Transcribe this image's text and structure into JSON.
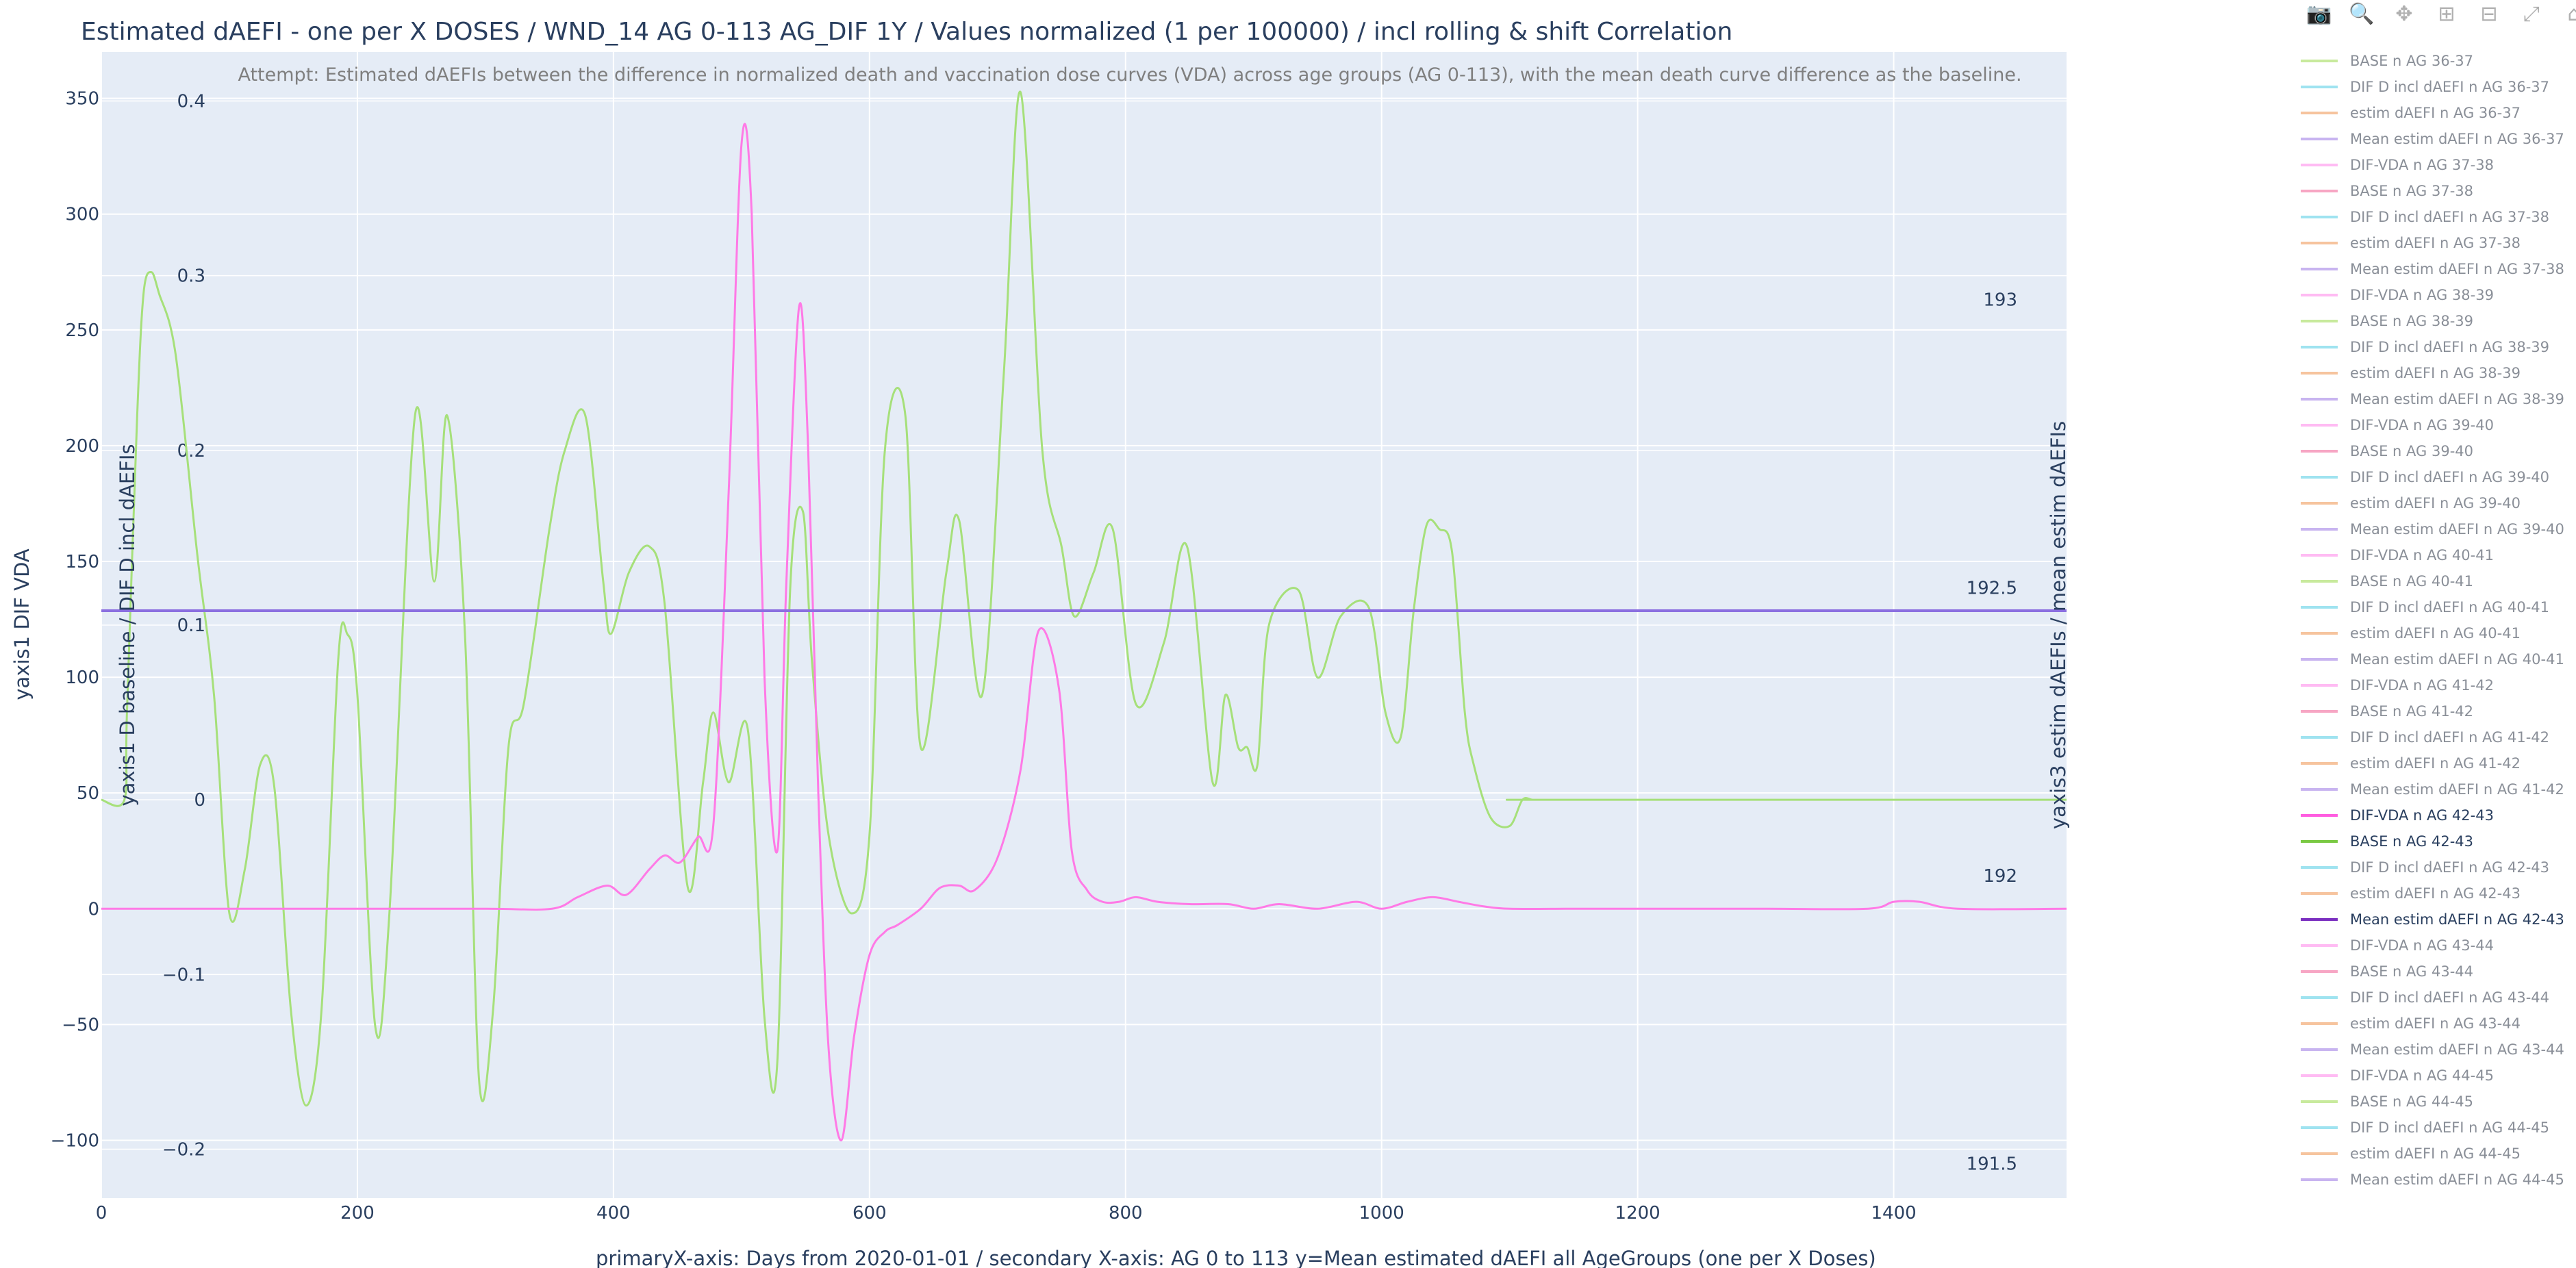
{
  "chart_data": {
    "type": "line",
    "title": "Estimated dAEFI - one per X DOSES / WND_14 AG 0-113 AG_DIF 1Y / Values normalized (1 per 100000) / incl rolling & shift Correlation",
    "annotation": "Attempt: Estimated dAEFIs between the difference in normalized death and vaccination dose curves (VDA) across age groups (AG 0-113), with the mean death curve difference as the baseline.",
    "xlabel": "primaryX-axis: Days from 2020-01-01  / secondary X-axis: AG 0 to 113 y=Mean estimated dAEFI all AgeGroups (one per X Doses)",
    "y1label": "yaxis1 DIF VDA",
    "y2label": "yaxis1 D baseline / DIF D incl dAEFIs",
    "y3label": "yaxis3 estim dAEFIs / mean estim dAEFIs",
    "xlim": [
      0,
      1535
    ],
    "y1lim": [
      -125,
      370
    ],
    "y2lim": [
      -0.228,
      0.428
    ],
    "y3lim": [
      191.44,
      193.43
    ],
    "xticks": [
      0,
      200,
      400,
      600,
      800,
      1000,
      1200,
      1400
    ],
    "y1ticks": [
      -100,
      -50,
      0,
      50,
      100,
      150,
      200,
      250,
      300,
      350
    ],
    "y2ticks": [
      -0.2,
      -0.1,
      0,
      0.1,
      0.2,
      0.3,
      0.4
    ],
    "y3ticks": [
      191.5,
      192,
      192.5,
      193
    ],
    "grid": true,
    "legend_position": "right",
    "series": [
      {
        "name": "BASE n AG 42-43",
        "axis": "y2",
        "color": "#a6e07a",
        "x": [
          0,
          18,
          20,
          28,
          33,
          39,
          45,
          58,
          75,
          88,
          100,
          112,
          124,
          135,
          148,
          160,
          172,
          185,
          192,
          200,
          214,
          225,
          245,
          260,
          270,
          284,
          295,
          306,
          318,
          330,
          350,
          362,
          378,
          392,
          398,
          412,
          428,
          440,
          458,
          470,
          478,
          490,
          505,
          518,
          528,
          538,
          548,
          555,
          568,
          586,
          600,
          612,
          628,
          640,
          660,
          670,
          688,
          705,
          718,
          735,
          750,
          760,
          775,
          790,
          808,
          830,
          848,
          868,
          878,
          888,
          895,
          903,
          912,
          935,
          950,
          968,
          990,
          1003,
          1015,
          1025,
          1035,
          1045,
          1055,
          1065,
          1072,
          1085,
          1100,
          1110,
          1118,
          1130,
          1535
        ],
        "y": [
          0.0,
          0.0,
          0.05,
          0.22,
          0.29,
          0.302,
          0.29,
          0.255,
          0.14,
          0.06,
          -0.065,
          -0.04,
          0.02,
          0.008,
          -0.12,
          -0.175,
          -0.12,
          0.08,
          0.095,
          0.06,
          -0.13,
          -0.065,
          0.22,
          0.125,
          0.22,
          0.095,
          -0.16,
          -0.12,
          0.03,
          0.055,
          0.155,
          0.2,
          0.22,
          0.125,
          0.095,
          0.13,
          0.145,
          0.112,
          -0.05,
          0.01,
          0.05,
          0.01,
          0.04,
          -0.125,
          -0.15,
          0.12,
          0.165,
          0.08,
          -0.02,
          -0.065,
          -0.02,
          0.2,
          0.22,
          0.03,
          0.13,
          0.16,
          0.06,
          0.245,
          0.405,
          0.2,
          0.145,
          0.105,
          0.13,
          0.155,
          0.055,
          0.09,
          0.145,
          0.01,
          0.06,
          0.03,
          0.03,
          0.02,
          0.1,
          0.12,
          0.07,
          0.105,
          0.11,
          0.05,
          0.036,
          0.108,
          0.157,
          0.155,
          0.142,
          0.05,
          0.02,
          -0.01,
          -0.015,
          0.0,
          0.0,
          0.0,
          0.0
        ]
      },
      {
        "name": "DIF-VDA n AG 42-43",
        "axis": "y1",
        "color": "#ff7ae6",
        "x": [
          0,
          100,
          200,
          300,
          352,
          372,
          395,
          410,
          428,
          440,
          452,
          466,
          478,
          490,
          500,
          508,
          518,
          528,
          535,
          545,
          552,
          560,
          568,
          578,
          588,
          600,
          612,
          622,
          640,
          655,
          670,
          682,
          700,
          718,
          732,
          748,
          758,
          770,
          782,
          795,
          808,
          825,
          850,
          880,
          900,
          920,
          950,
          980,
          1000,
          1020,
          1040,
          1060,
          1080,
          1100,
          1150,
          1200,
          1300,
          1380,
          1400,
          1420,
          1450,
          1535
        ],
        "y": [
          0,
          0,
          0,
          0,
          0,
          5,
          10,
          6,
          17,
          23,
          20,
          31,
          36,
          180,
          330,
          300,
          100,
          25,
          140,
          260,
          200,
          50,
          -60,
          -100,
          -55,
          -20,
          -10,
          -7,
          0,
          9,
          10,
          8,
          22,
          60,
          120,
          95,
          25,
          8,
          3,
          3,
          5,
          3,
          2,
          2,
          0,
          2,
          0,
          3,
          0,
          3,
          5,
          3,
          1,
          0,
          0,
          0,
          0,
          0,
          3,
          3,
          0,
          0
        ]
      },
      {
        "name": "Mean estim dAEFI n AG 42-43",
        "axis": "y3",
        "color": "#8b6fe0",
        "x": [
          0,
          1535
        ],
        "y": [
          192.46,
          192.46
        ]
      }
    ],
    "legend": [
      {
        "label": "BASE n AG 36-37",
        "color": "#c8ea9d",
        "active": false
      },
      {
        "label": "DIF D incl dAEFI n AG 36-37",
        "color": "#9fe3f0",
        "active": false
      },
      {
        "label": "estim dAEFI n AG 36-37",
        "color": "#f6c49e",
        "active": false
      },
      {
        "label": "Mean estim dAEFI n AG 36-37",
        "color": "#c8b4f0",
        "active": false
      },
      {
        "label": "DIF-VDA n AG 37-38",
        "color": "#ffbbf3",
        "active": false
      },
      {
        "label": "BASE n AG 37-38",
        "color": "#f7a6c4",
        "active": false
      },
      {
        "label": "DIF D incl dAEFI n AG 37-38",
        "color": "#9fe3f0",
        "active": false
      },
      {
        "label": "estim dAEFI n AG 37-38",
        "color": "#f6c49e",
        "active": false
      },
      {
        "label": "Mean estim dAEFI n AG 37-38",
        "color": "#c8b4f0",
        "active": false
      },
      {
        "label": "DIF-VDA n AG 38-39",
        "color": "#ffbbf3",
        "active": false
      },
      {
        "label": "BASE n AG 38-39",
        "color": "#c8ea9d",
        "active": false
      },
      {
        "label": "DIF D incl dAEFI n AG 38-39",
        "color": "#9fe3f0",
        "active": false
      },
      {
        "label": "estim dAEFI n AG 38-39",
        "color": "#f6c49e",
        "active": false
      },
      {
        "label": "Mean estim dAEFI n AG 38-39",
        "color": "#c8b4f0",
        "active": false
      },
      {
        "label": "DIF-VDA n AG 39-40",
        "color": "#ffbbf3",
        "active": false
      },
      {
        "label": "BASE n AG 39-40",
        "color": "#f7a6c4",
        "active": false
      },
      {
        "label": "DIF D incl dAEFI n AG 39-40",
        "color": "#9fe3f0",
        "active": false
      },
      {
        "label": "estim dAEFI n AG 39-40",
        "color": "#f6c49e",
        "active": false
      },
      {
        "label": "Mean estim dAEFI n AG 39-40",
        "color": "#c8b4f0",
        "active": false
      },
      {
        "label": "DIF-VDA n AG 40-41",
        "color": "#ffbbf3",
        "active": false
      },
      {
        "label": "BASE n AG 40-41",
        "color": "#c8ea9d",
        "active": false
      },
      {
        "label": "DIF D incl dAEFI n AG 40-41",
        "color": "#9fe3f0",
        "active": false
      },
      {
        "label": "estim dAEFI n AG 40-41",
        "color": "#f6c49e",
        "active": false
      },
      {
        "label": "Mean estim dAEFI n AG 40-41",
        "color": "#c8b4f0",
        "active": false
      },
      {
        "label": "DIF-VDA n AG 41-42",
        "color": "#ffbbf3",
        "active": false
      },
      {
        "label": "BASE n AG 41-42",
        "color": "#f7a6c4",
        "active": false
      },
      {
        "label": "DIF D incl dAEFI n AG 41-42",
        "color": "#9fe3f0",
        "active": false
      },
      {
        "label": "estim dAEFI n AG 41-42",
        "color": "#f6c49e",
        "active": false
      },
      {
        "label": "Mean estim dAEFI n AG 41-42",
        "color": "#c8b4f0",
        "active": false
      },
      {
        "label": "DIF-VDA n AG 42-43",
        "color": "#ff5ce0",
        "active": true
      },
      {
        "label": "BASE n AG 42-43",
        "color": "#7ac943",
        "active": true
      },
      {
        "label": "DIF D incl dAEFI n AG 42-43",
        "color": "#9fe3f0",
        "active": false
      },
      {
        "label": "estim dAEFI n AG 42-43",
        "color": "#f6c49e",
        "active": false
      },
      {
        "label": "Mean estim dAEFI n AG 42-43",
        "color": "#7b2fc0",
        "active": true
      },
      {
        "label": "DIF-VDA n AG 43-44",
        "color": "#ffbbf3",
        "active": false
      },
      {
        "label": "BASE n AG 43-44",
        "color": "#f7a6c4",
        "active": false
      },
      {
        "label": "DIF D incl dAEFI n AG 43-44",
        "color": "#9fe3f0",
        "active": false
      },
      {
        "label": "estim dAEFI n AG 43-44",
        "color": "#f6c49e",
        "active": false
      },
      {
        "label": "Mean estim dAEFI n AG 43-44",
        "color": "#c8b4f0",
        "active": false
      },
      {
        "label": "DIF-VDA n AG 44-45",
        "color": "#ffbbf3",
        "active": false
      },
      {
        "label": "BASE n AG 44-45",
        "color": "#c8ea9d",
        "active": false
      },
      {
        "label": "DIF D incl dAEFI n AG 44-45",
        "color": "#9fe3f0",
        "active": false
      },
      {
        "label": "estim dAEFI n AG 44-45",
        "color": "#f6c49e",
        "active": false
      },
      {
        "label": "Mean estim dAEFI n AG 44-45",
        "color": "#c8b4f0",
        "active": false
      }
    ]
  },
  "modebar": [
    {
      "name": "camera-icon",
      "glyph": "📷"
    },
    {
      "name": "zoom-icon",
      "glyph": "🔍"
    },
    {
      "name": "pan-icon",
      "glyph": "✥"
    },
    {
      "name": "zoom-in-icon",
      "glyph": "⊞"
    },
    {
      "name": "zoom-out-icon",
      "glyph": "⊟"
    },
    {
      "name": "autoscale-icon",
      "glyph": "⤢"
    },
    {
      "name": "reset-axes-icon",
      "glyph": "⌂"
    }
  ],
  "colors": {
    "plot_bg": "#e5ecf6",
    "grid": "#ffffff",
    "text": "#2a3f5f",
    "annotation": "#7f7f7f"
  }
}
